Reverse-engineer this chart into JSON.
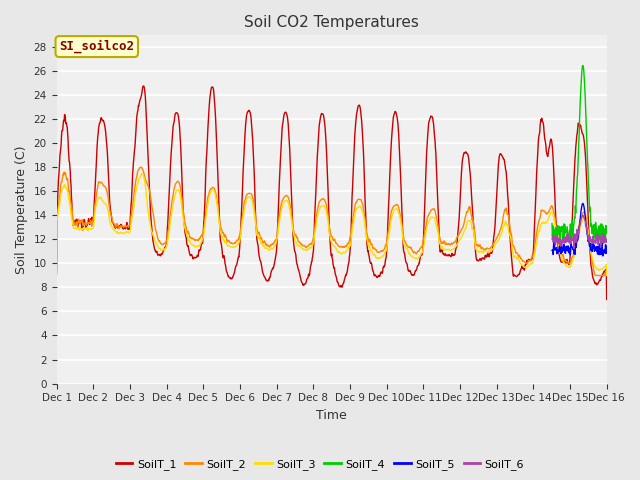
{
  "title": "Soil CO2 Temperatures",
  "xlabel": "Time",
  "ylabel": "Soil Temperature (C)",
  "ylim": [
    0,
    29
  ],
  "yticks": [
    0,
    2,
    4,
    6,
    8,
    10,
    12,
    14,
    16,
    18,
    20,
    22,
    24,
    26,
    28
  ],
  "xtick_labels": [
    "Dec 1",
    "Dec 2",
    "Dec 3",
    "Dec 4",
    "Dec 5",
    "Dec 6",
    "Dec 7",
    "Dec 8",
    "Dec 9",
    "Dec 10",
    "Dec 11",
    "Dec 12",
    "Dec 13",
    "Dec 14",
    "Dec 15",
    "Dec 16"
  ],
  "series_colors": {
    "SoilT_1": "#cc0000",
    "SoilT_2": "#ff8800",
    "SoilT_3": "#ffdd00",
    "SoilT_4": "#00cc00",
    "SoilT_5": "#0000ff",
    "SoilT_6": "#aa44aa"
  },
  "annotation_text": "SI_soilco2",
  "bg_color": "#e8e8e8",
  "plot_bg_color": "#e8e8e8",
  "inner_bg_color": "#f0f0f0",
  "grid_color": "#ffffff",
  "linewidth": 1.0
}
